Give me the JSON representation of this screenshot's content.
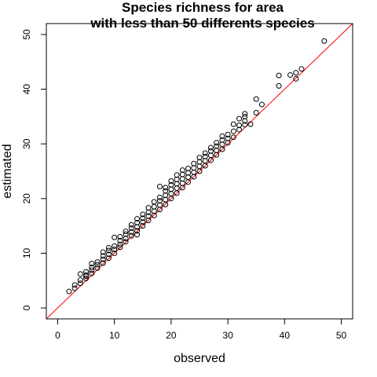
{
  "chart_data": {
    "type": "scatter",
    "title_lines": [
      "Species richness for area",
      "with less than 50 differents species"
    ],
    "xlabel": "observed",
    "ylabel": "estimated",
    "xlim": [
      -2,
      52
    ],
    "ylim": [
      -2,
      52
    ],
    "xticks": [
      0,
      10,
      20,
      30,
      40,
      50
    ],
    "yticks": [
      0,
      10,
      20,
      30,
      40,
      50
    ],
    "reference_line": {
      "type": "identity",
      "color": "#ff0000"
    },
    "point_color": "#000000",
    "points": [
      [
        2,
        3.0
      ],
      [
        3,
        3.6
      ],
      [
        3,
        4.2
      ],
      [
        4,
        4.5
      ],
      [
        4,
        5.1
      ],
      [
        4,
        6.2
      ],
      [
        5,
        5.4
      ],
      [
        5,
        6.0
      ],
      [
        5,
        6.6
      ],
      [
        5,
        5.8
      ],
      [
        6,
        6.3
      ],
      [
        6,
        6.9
      ],
      [
        6,
        7.4
      ],
      [
        6,
        8.1
      ],
      [
        7,
        7.3
      ],
      [
        7,
        7.9
      ],
      [
        7,
        8.4
      ],
      [
        8,
        8.2
      ],
      [
        8,
        8.9
      ],
      [
        8,
        9.5
      ],
      [
        8,
        10.2
      ],
      [
        9,
        9.1
      ],
      [
        9,
        9.8
      ],
      [
        9,
        10.5
      ],
      [
        9,
        11.0
      ],
      [
        10,
        10.0
      ],
      [
        10,
        10.7
      ],
      [
        10,
        11.3
      ],
      [
        10,
        12.9
      ],
      [
        11,
        11.1
      ],
      [
        11,
        11.6
      ],
      [
        11,
        12.3
      ],
      [
        11,
        13.0
      ],
      [
        12,
        12.1
      ],
      [
        12,
        12.7
      ],
      [
        12,
        13.5
      ],
      [
        12,
        14.0
      ],
      [
        13,
        13.2
      ],
      [
        13,
        13.9
      ],
      [
        13,
        14.6
      ],
      [
        13,
        15.2
      ],
      [
        14,
        13.4
      ],
      [
        14,
        14.1
      ],
      [
        14,
        14.8
      ],
      [
        14,
        15.6
      ],
      [
        14,
        16.3
      ],
      [
        15,
        15.0
      ],
      [
        15,
        15.7
      ],
      [
        15,
        16.4
      ],
      [
        15,
        17.1
      ],
      [
        16,
        16.0
      ],
      [
        16,
        16.8
      ],
      [
        16,
        17.5
      ],
      [
        16,
        18.3
      ],
      [
        17,
        16.9
      ],
      [
        17,
        17.7
      ],
      [
        17,
        18.5
      ],
      [
        17,
        19.4
      ],
      [
        18,
        18.0
      ],
      [
        18,
        18.8
      ],
      [
        18,
        19.6
      ],
      [
        18,
        20.2
      ],
      [
        18,
        22.2
      ],
      [
        19,
        18.9
      ],
      [
        19,
        19.8
      ],
      [
        19,
        20.6
      ],
      [
        19,
        21.4
      ],
      [
        19,
        22.0
      ],
      [
        20,
        20.0
      ],
      [
        20,
        20.9
      ],
      [
        20,
        21.7
      ],
      [
        20,
        22.5
      ],
      [
        20,
        23.2
      ],
      [
        21,
        21.0
      ],
      [
        21,
        21.9
      ],
      [
        21,
        22.7
      ],
      [
        21,
        23.5
      ],
      [
        21,
        24.3
      ],
      [
        22,
        22.0
      ],
      [
        22,
        22.8
      ],
      [
        22,
        23.6
      ],
      [
        22,
        24.4
      ],
      [
        22,
        25.2
      ],
      [
        23,
        23.0
      ],
      [
        23,
        23.9
      ],
      [
        23,
        24.7
      ],
      [
        23,
        25.5
      ],
      [
        24,
        24.0
      ],
      [
        24,
        24.8
      ],
      [
        24,
        25.6
      ],
      [
        24,
        26.4
      ],
      [
        25,
        25.0
      ],
      [
        25,
        25.9
      ],
      [
        25,
        26.7
      ],
      [
        25,
        27.5
      ],
      [
        26,
        26.0
      ],
      [
        26,
        26.9
      ],
      [
        26,
        27.7
      ],
      [
        26,
        28.3
      ],
      [
        27,
        27.0
      ],
      [
        27,
        27.9
      ],
      [
        27,
        28.7
      ],
      [
        27,
        29.3
      ],
      [
        28,
        28.0
      ],
      [
        28,
        28.8
      ],
      [
        28,
        29.6
      ],
      [
        28,
        30.2
      ],
      [
        29,
        29.0
      ],
      [
        29,
        29.9
      ],
      [
        29,
        30.7
      ],
      [
        29,
        31.4
      ],
      [
        30,
        30.2
      ],
      [
        30,
        31.0
      ],
      [
        30,
        31.7
      ],
      [
        31,
        31.2
      ],
      [
        31,
        32.3
      ],
      [
        31,
        33.6
      ],
      [
        32,
        32.6
      ],
      [
        32,
        33.4
      ],
      [
        32,
        34.6
      ],
      [
        33,
        33.5
      ],
      [
        33,
        34.2
      ],
      [
        33,
        35.0
      ],
      [
        33,
        35.5
      ],
      [
        34,
        33.6
      ],
      [
        35,
        35.7
      ],
      [
        35,
        38.2
      ],
      [
        36,
        37.2
      ],
      [
        39,
        40.6
      ],
      [
        39,
        42.5
      ],
      [
        41,
        42.6
      ],
      [
        42,
        41.9
      ],
      [
        42,
        43.0
      ],
      [
        43,
        43.7
      ],
      [
        47,
        48.8
      ]
    ]
  }
}
